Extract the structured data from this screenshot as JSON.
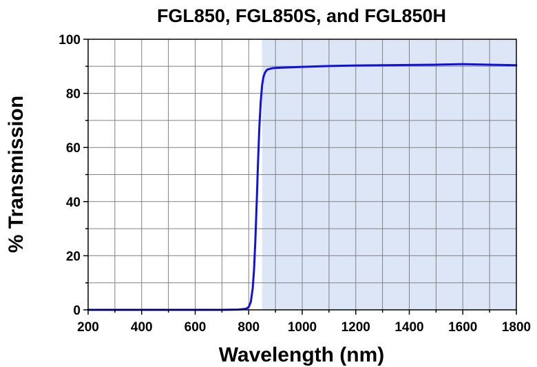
{
  "chart_data": {
    "type": "line",
    "title": "FGL850, FGL850S, and FGL850H",
    "xlabel": "Wavelength (nm)",
    "ylabel": "% Transmission",
    "xlim": [
      200,
      1800
    ],
    "ylim": [
      0,
      100
    ],
    "x_ticks": [
      200,
      400,
      600,
      800,
      1000,
      1200,
      1400,
      1600,
      1800
    ],
    "y_ticks": [
      0,
      20,
      40,
      60,
      80,
      100
    ],
    "grid": true,
    "shaded_region": {
      "x_start": 850,
      "x_end": 1800,
      "color": "#dde6f7"
    },
    "series": [
      {
        "color": "#1010e0",
        "x": [
          200,
          400,
          600,
          700,
          760,
          790,
          800,
          808,
          815,
          820,
          825,
          830,
          835,
          840,
          845,
          850,
          855,
          860,
          865,
          870,
          880,
          890,
          900,
          950,
          1000,
          1100,
          1200,
          1300,
          1400,
          1500,
          1600,
          1700,
          1800
        ],
        "y": [
          0,
          0,
          0,
          0,
          0.1,
          0.4,
          1,
          3,
          8,
          15,
          26,
          40,
          55,
          68,
          77,
          83,
          86,
          87.5,
          88.3,
          88.8,
          89.1,
          89.3,
          89.4,
          89.6,
          89.8,
          90.1,
          90.3,
          90.4,
          90.5,
          90.6,
          90.8,
          90.6,
          90.4
        ]
      }
    ]
  }
}
